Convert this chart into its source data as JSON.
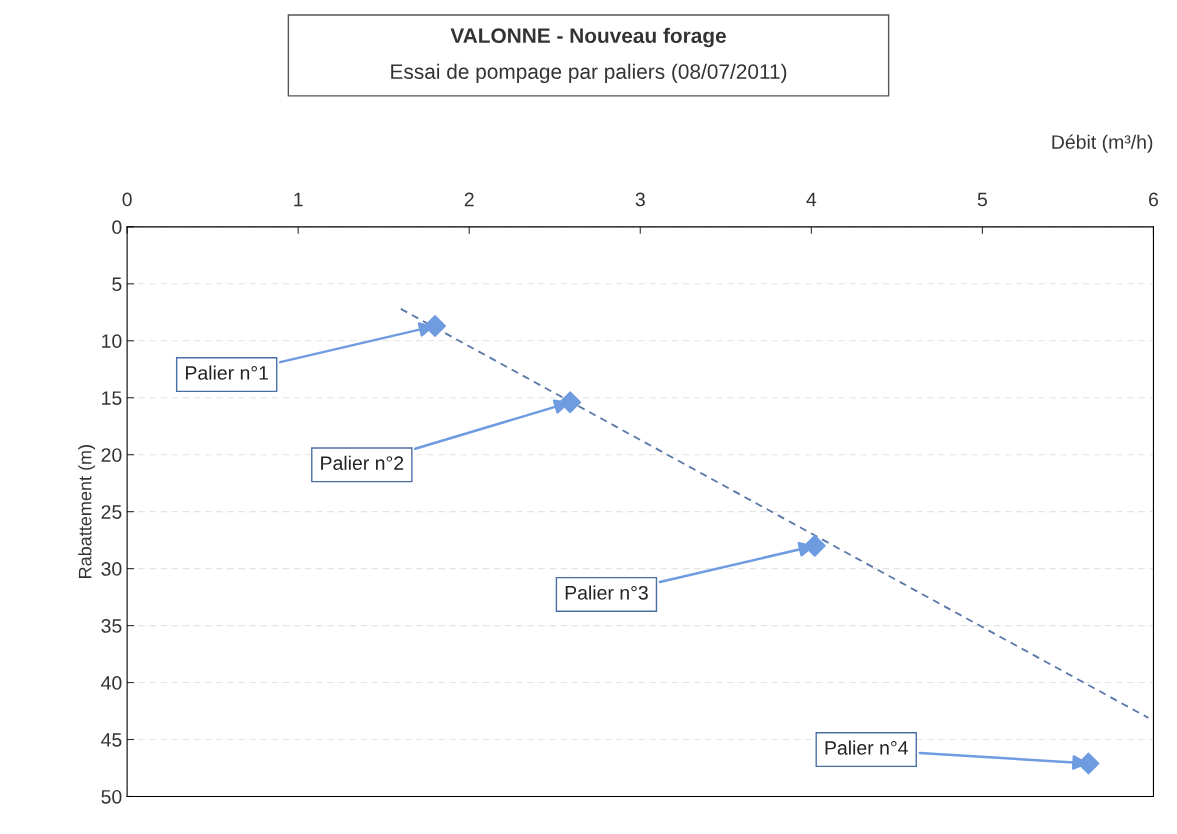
{
  "chart_data": {
    "type": "scatter",
    "title": "VALONNE - Nouveau forage",
    "subtitle": "Essai de pompage par paliers (08/07/2011)",
    "xlabel": "Débit (m³/h)",
    "ylabel": "Rabattement (m)",
    "x": [
      1.8,
      2.59,
      4.02,
      5.62
    ],
    "series": [
      {
        "color": "#6f9be0",
        "marker": "diamond",
        "values": [
          8.7,
          15.4,
          28.0,
          47.1
        ]
      },
      {
        "type": "line",
        "color": "#5b77a8",
        "line_style": "dashed",
        "marker": "none",
        "x": [
          1.6,
          5.97
        ],
        "values": [
          7.2,
          43.1
        ]
      }
    ],
    "xlim": [
      0,
      6
    ],
    "xticks": [
      0,
      1,
      2,
      3,
      4,
      5,
      6
    ],
    "ylim": [
      50,
      0
    ],
    "yticks": [
      0,
      5,
      10,
      15,
      20,
      25,
      30,
      35,
      40,
      45,
      50
    ],
    "grid": "y",
    "annotations": [
      {
        "text": "Palier n°1",
        "x": 1.8,
        "y": 8.7
      },
      {
        "text": "Palier n°2",
        "x": 2.59,
        "y": 15.4
      },
      {
        "text": "Palier n°3",
        "x": 4.02,
        "y": 28.0
      },
      {
        "text": "Palier n°4",
        "x": 5.62,
        "y": 47.1
      }
    ]
  }
}
